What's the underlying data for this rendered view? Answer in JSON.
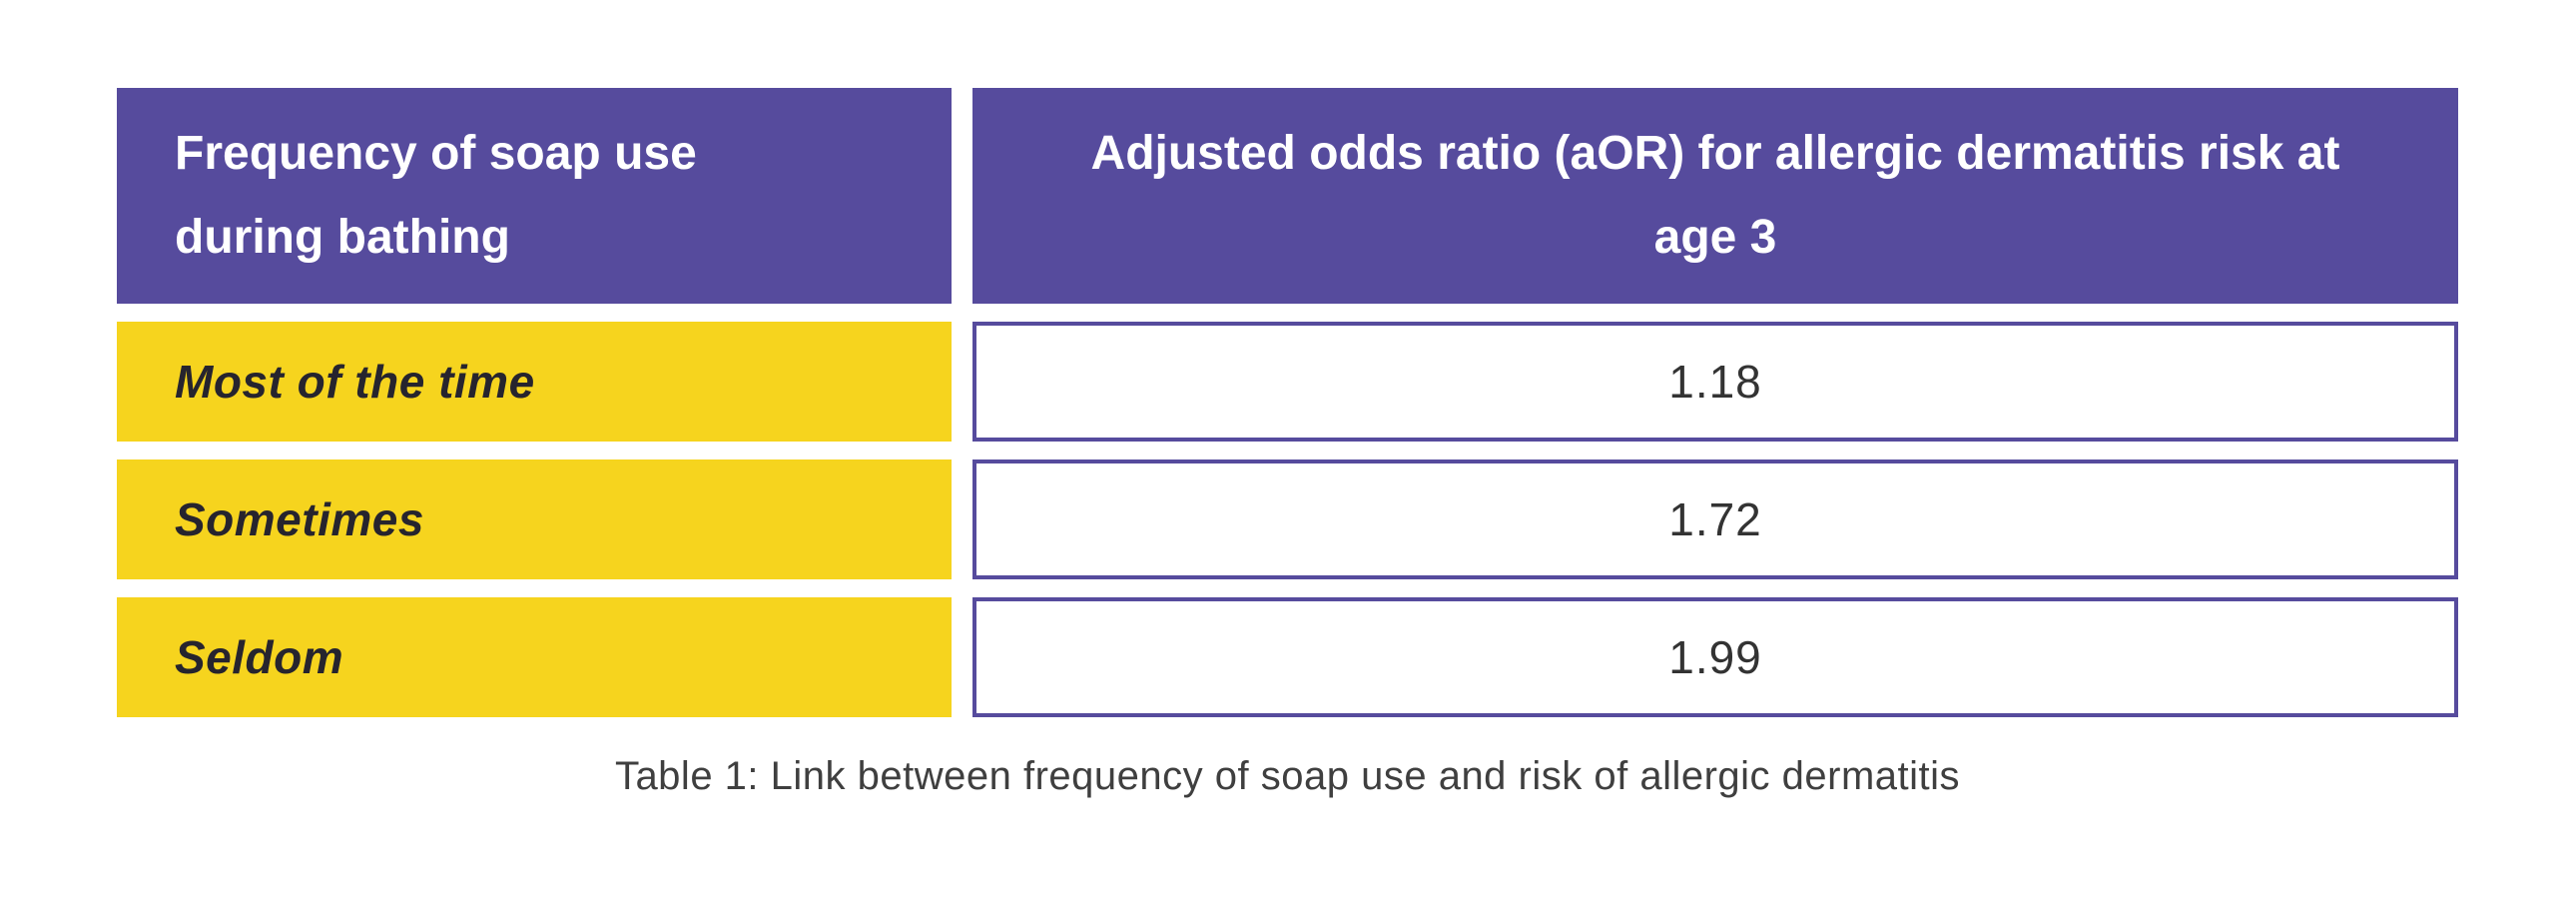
{
  "table": {
    "header": {
      "col1": "Frequency of soap use during bathing",
      "col2": "Adjusted odds ratio (aOR) for allergic dermatitis risk at age 3"
    },
    "rows": [
      {
        "label": "Most of the time",
        "value": "1.18"
      },
      {
        "label": "Sometimes",
        "value": "1.72"
      },
      {
        "label": "Seldom",
        "value": "1.99"
      }
    ],
    "caption": "Table 1: Link between frequency of soap use and risk of allergic dermatitis"
  },
  "colors": {
    "header_bg": "#564b9d",
    "header_text": "#ffffff",
    "label_row_bg": "#f6d41e",
    "label_text": "#26242e",
    "value_cell_bg": "#ffffff",
    "value_cell_border": "#564b9d",
    "value_text": "#333333",
    "caption_text": "#3f3f3f",
    "page_background": "#ffffff"
  },
  "chart_data": {
    "type": "table",
    "title": "Table 1: Link between frequency of soap use and risk of allergic dermatitis",
    "columns": [
      "Frequency of soap use during bathing",
      "Adjusted odds ratio (aOR) for allergic dermatitis risk at age 3"
    ],
    "categories": [
      "Most of the time",
      "Sometimes",
      "Seldom"
    ],
    "values": [
      1.18,
      1.72,
      1.99
    ]
  }
}
